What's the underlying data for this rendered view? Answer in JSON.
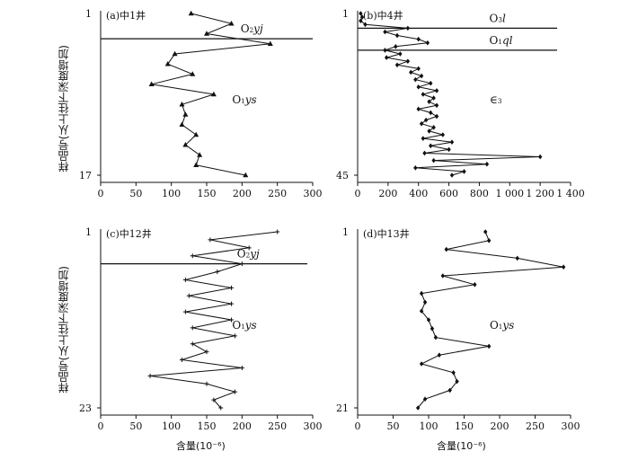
{
  "figure": {
    "ylabel": "样品号(从上往下深度增加)",
    "xlabel": "含量(10⁻⁶)"
  },
  "chart_data": [
    {
      "type": "line",
      "panel": "(a)中1井",
      "marker": "triangle",
      "xlim": [
        0,
        300
      ],
      "xticks": [
        0,
        50,
        100,
        150,
        200,
        250,
        300
      ],
      "y_first": "1",
      "y_last": "17",
      "boundaries": [
        {
          "after_sample": 3.5,
          "labels": [
            {
              "text": "O₂yj",
              "pos": "above-right"
            }
          ]
        }
      ],
      "zone_labels": [
        {
          "text": "O₁ys",
          "pos": "middle-right"
        }
      ],
      "y": [
        1,
        2,
        3,
        4,
        5,
        6,
        7,
        8,
        9,
        10,
        11,
        12,
        13,
        14,
        15,
        16,
        17
      ],
      "x": [
        128,
        185,
        150,
        240,
        105,
        95,
        130,
        72,
        160,
        115,
        120,
        115,
        135,
        120,
        140,
        135,
        205
      ]
    },
    {
      "type": "line",
      "panel": "(b)中4井",
      "marker": "diamond",
      "xlim": [
        0,
        1400
      ],
      "xticks": [
        0,
        200,
        400,
        600,
        800,
        1000,
        1200,
        1400
      ],
      "xtick_labels": [
        "0",
        "200",
        "400",
        "600",
        "800",
        "1 000",
        "1 200",
        "1 400"
      ],
      "y_first": "1",
      "y_last": "45",
      "boundaries": [
        {
          "after_sample": 5,
          "labels": [
            {
              "text": "O₃l",
              "pos": "above-right"
            }
          ]
        },
        {
          "after_sample": 11,
          "labels": [
            {
              "text": "O₁ql",
              "pos": "above-right"
            }
          ]
        }
      ],
      "zone_labels": [
        {
          "text": "∈₃",
          "pos": "middle-right"
        }
      ],
      "y": [
        1,
        2,
        3,
        4,
        5,
        6,
        7,
        8,
        9,
        10,
        11,
        12,
        13,
        14,
        15,
        16,
        17,
        18,
        19,
        20,
        21,
        22,
        23,
        24,
        25,
        26,
        27,
        28,
        29,
        30,
        31,
        32,
        33,
        34,
        35,
        36,
        37,
        38,
        39,
        40,
        41,
        42,
        43,
        44,
        45
      ],
      "x": [
        20,
        30,
        20,
        50,
        330,
        180,
        260,
        400,
        460,
        250,
        180,
        280,
        190,
        330,
        260,
        400,
        350,
        420,
        380,
        480,
        400,
        520,
        430,
        500,
        470,
        520,
        400,
        480,
        520,
        450,
        420,
        500,
        470,
        560,
        430,
        620,
        480,
        600,
        440,
        1200,
        500,
        850,
        380,
        700,
        620
      ]
    },
    {
      "type": "line",
      "panel": "(c)中12井",
      "marker": "plus",
      "xlim": [
        0,
        300
      ],
      "xticks": [
        0,
        50,
        100,
        150,
        200,
        250,
        300
      ],
      "y_first": "1",
      "y_last": "23",
      "boundaries": [
        {
          "after_sample": 5,
          "labels": [
            {
              "text": "O₂yj",
              "pos": "above-right"
            }
          ]
        }
      ],
      "zone_labels": [
        {
          "text": "O₁ys",
          "pos": "middle-right"
        }
      ],
      "y": [
        1,
        2,
        3,
        4,
        5,
        6,
        7,
        8,
        9,
        10,
        11,
        12,
        13,
        14,
        15,
        16,
        17,
        18,
        19,
        20,
        21,
        22,
        23
      ],
      "x": [
        250,
        155,
        210,
        130,
        200,
        165,
        120,
        185,
        125,
        185,
        120,
        185,
        130,
        190,
        130,
        150,
        115,
        200,
        70,
        150,
        190,
        160,
        170
      ]
    },
    {
      "type": "line",
      "panel": "(d)中13井",
      "marker": "diamond",
      "xlim": [
        0,
        300
      ],
      "xticks": [
        0,
        50,
        100,
        150,
        200,
        250,
        300
      ],
      "y_first": "1",
      "y_last": "21",
      "boundaries": [],
      "zone_labels": [
        {
          "text": "O₁ys",
          "pos": "middle-right"
        }
      ],
      "y": [
        1,
        2,
        3,
        4,
        5,
        6,
        7,
        8,
        9,
        10,
        11,
        12,
        13,
        14,
        15,
        16,
        17,
        18,
        19,
        20,
        21
      ],
      "x": [
        180,
        185,
        125,
        225,
        290,
        120,
        165,
        90,
        95,
        90,
        100,
        105,
        110,
        185,
        115,
        90,
        135,
        140,
        130,
        95,
        85
      ]
    }
  ]
}
